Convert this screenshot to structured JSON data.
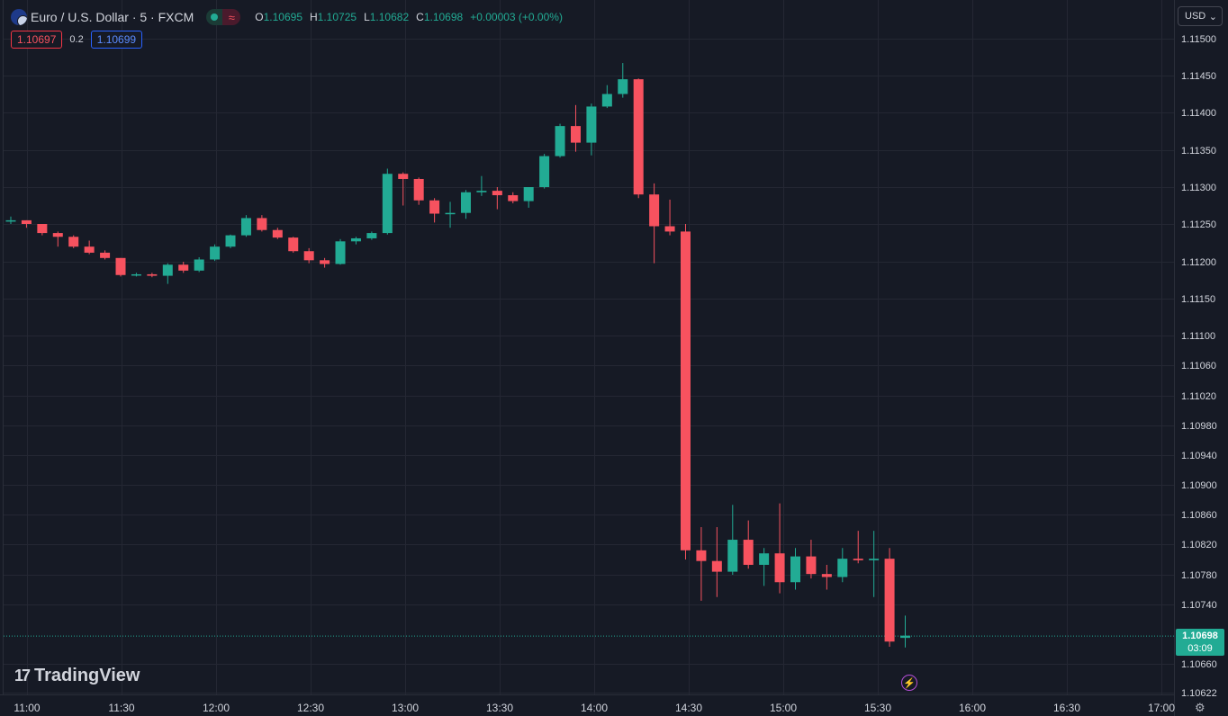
{
  "header": {
    "symbol": "Euro / U.S. Dollar · 5 · FXCM",
    "flag_icon": "eur-usd-flag-icon",
    "status_icon": "market-open-dot-icon",
    "wave_icon": "≈",
    "ohlc": {
      "open_label": "O",
      "open": "1.10695",
      "high_label": "H",
      "high": "1.10725",
      "low_label": "L",
      "low": "1.10682",
      "close_label": "C",
      "close": "1.10698",
      "change": "+0.00003 (+0.00%)"
    }
  },
  "bidask": {
    "bid": "1.10697",
    "spread": "0.2",
    "ask": "1.10699"
  },
  "currency_selector": {
    "value": "USD",
    "arrow": "⌄"
  },
  "brand": {
    "mark": "17",
    "name": "TradingView"
  },
  "last_price": {
    "price": "1.10698",
    "countdown": "03:09"
  },
  "bolt_icon": "⚡",
  "settings_icon": "⚙",
  "colors": {
    "up": "#22ab94",
    "down": "#f7525f",
    "background": "#161a25",
    "grid": "#242733",
    "axis_text": "#d1d4dc"
  },
  "chart_data": {
    "type": "candlestick",
    "title": "Euro / U.S. Dollar · 5 · FXCM",
    "interval": "5",
    "x_tick_labels": [
      "11:00",
      "11:30",
      "12:00",
      "12:30",
      "13:00",
      "13:30",
      "14:00",
      "14:30",
      "15:00",
      "15:30",
      "16:00",
      "16:30",
      "17:00"
    ],
    "y_tick_labels": [
      "1.11500",
      "1.11450",
      "1.11400",
      "1.11350",
      "1.11300",
      "1.11250",
      "1.11200",
      "1.11150",
      "1.11100",
      "1.11060",
      "1.11020",
      "1.10980",
      "1.10940",
      "1.10900",
      "1.10860",
      "1.10820",
      "1.10780",
      "1.10740",
      "1.10660",
      "1.10622"
    ],
    "y_scale": "non-linear (tick-interpolated)",
    "grid": true,
    "candles": [
      {
        "t": "10:55",
        "o": 1.11255,
        "h": 1.1126,
        "l": 1.1125,
        "c": 1.11255
      },
      {
        "t": "11:00",
        "o": 1.11255,
        "h": 1.11255,
        "l": 1.11245,
        "c": 1.1125
      },
      {
        "t": "11:05",
        "o": 1.1125,
        "h": 1.1125,
        "l": 1.11235,
        "c": 1.11238
      },
      {
        "t": "11:10",
        "o": 1.11238,
        "h": 1.1124,
        "l": 1.1122,
        "c": 1.11233
      },
      {
        "t": "11:15",
        "o": 1.11233,
        "h": 1.11235,
        "l": 1.11218,
        "c": 1.1122
      },
      {
        "t": "11:20",
        "o": 1.1122,
        "h": 1.11228,
        "l": 1.1121,
        "c": 1.11212
      },
      {
        "t": "11:25",
        "o": 1.11212,
        "h": 1.11215,
        "l": 1.11203,
        "c": 1.11205
      },
      {
        "t": "11:30",
        "o": 1.11205,
        "h": 1.11205,
        "l": 1.1118,
        "c": 1.11182
      },
      {
        "t": "11:35",
        "o": 1.11182,
        "h": 1.11185,
        "l": 1.1118,
        "c": 1.11183
      },
      {
        "t": "11:40",
        "o": 1.11183,
        "h": 1.11185,
        "l": 1.11179,
        "c": 1.11181
      },
      {
        "t": "11:45",
        "o": 1.11181,
        "h": 1.11198,
        "l": 1.1117,
        "c": 1.11196
      },
      {
        "t": "11:50",
        "o": 1.11196,
        "h": 1.112,
        "l": 1.11185,
        "c": 1.11188
      },
      {
        "t": "11:55",
        "o": 1.11188,
        "h": 1.11206,
        "l": 1.11186,
        "c": 1.11203
      },
      {
        "t": "12:00",
        "o": 1.11203,
        "h": 1.11223,
        "l": 1.11201,
        "c": 1.1122
      },
      {
        "t": "12:05",
        "o": 1.1122,
        "h": 1.11236,
        "l": 1.11218,
        "c": 1.11235
      },
      {
        "t": "12:10",
        "o": 1.11235,
        "h": 1.11262,
        "l": 1.11233,
        "c": 1.11258
      },
      {
        "t": "12:15",
        "o": 1.11258,
        "h": 1.11262,
        "l": 1.1124,
        "c": 1.11242
      },
      {
        "t": "12:20",
        "o": 1.11242,
        "h": 1.11245,
        "l": 1.1123,
        "c": 1.11232
      },
      {
        "t": "12:25",
        "o": 1.11232,
        "h": 1.11233,
        "l": 1.11212,
        "c": 1.11214
      },
      {
        "t": "12:30",
        "o": 1.11214,
        "h": 1.11218,
        "l": 1.11198,
        "c": 1.11202
      },
      {
        "t": "12:35",
        "o": 1.11202,
        "h": 1.11205,
        "l": 1.11192,
        "c": 1.11197
      },
      {
        "t": "12:40",
        "o": 1.11197,
        "h": 1.1123,
        "l": 1.11196,
        "c": 1.11227
      },
      {
        "t": "12:45",
        "o": 1.11227,
        "h": 1.11233,
        "l": 1.11223,
        "c": 1.11231
      },
      {
        "t": "12:50",
        "o": 1.11231,
        "h": 1.1124,
        "l": 1.11229,
        "c": 1.11238
      },
      {
        "t": "12:55",
        "o": 1.11238,
        "h": 1.11325,
        "l": 1.11236,
        "c": 1.11318
      },
      {
        "t": "13:00",
        "o": 1.11318,
        "h": 1.1132,
        "l": 1.11275,
        "c": 1.11311
      },
      {
        "t": "13:05",
        "o": 1.11311,
        "h": 1.11313,
        "l": 1.11276,
        "c": 1.11282
      },
      {
        "t": "13:10",
        "o": 1.11282,
        "h": 1.11285,
        "l": 1.11252,
        "c": 1.11264
      },
      {
        "t": "13:15",
        "o": 1.11264,
        "h": 1.1128,
        "l": 1.11245,
        "c": 1.11265
      },
      {
        "t": "13:20",
        "o": 1.11265,
        "h": 1.11296,
        "l": 1.11257,
        "c": 1.11293
      },
      {
        "t": "13:25",
        "o": 1.11293,
        "h": 1.11315,
        "l": 1.11288,
        "c": 1.11295
      },
      {
        "t": "13:30",
        "o": 1.11295,
        "h": 1.113,
        "l": 1.1127,
        "c": 1.11289
      },
      {
        "t": "13:35",
        "o": 1.11289,
        "h": 1.11293,
        "l": 1.11278,
        "c": 1.11281
      },
      {
        "t": "13:40",
        "o": 1.11281,
        "h": 1.11297,
        "l": 1.11272,
        "c": 1.113
      },
      {
        "t": "13:45",
        "o": 1.113,
        "h": 1.11345,
        "l": 1.11298,
        "c": 1.11342
      },
      {
        "t": "13:50",
        "o": 1.11342,
        "h": 1.11385,
        "l": 1.1134,
        "c": 1.11382
      },
      {
        "t": "13:55",
        "o": 1.11382,
        "h": 1.1141,
        "l": 1.11348,
        "c": 1.1136
      },
      {
        "t": "14:00",
        "o": 1.1136,
        "h": 1.11412,
        "l": 1.11343,
        "c": 1.11408
      },
      {
        "t": "14:05",
        "o": 1.11408,
        "h": 1.11437,
        "l": 1.11406,
        "c": 1.11425
      },
      {
        "t": "14:10",
        "o": 1.11425,
        "h": 1.11467,
        "l": 1.1142,
        "c": 1.11445
      },
      {
        "t": "14:15",
        "o": 1.11445,
        "h": 1.11446,
        "l": 1.11285,
        "c": 1.1129
      },
      {
        "t": "14:20",
        "o": 1.1129,
        "h": 1.11305,
        "l": 1.11198,
        "c": 1.11247
      },
      {
        "t": "14:25",
        "o": 1.11247,
        "h": 1.11283,
        "l": 1.11235,
        "c": 1.1124
      },
      {
        "t": "14:30",
        "o": 1.1124,
        "h": 1.1125,
        "l": 1.108,
        "c": 1.10812
      },
      {
        "t": "14:35",
        "o": 1.10812,
        "h": 1.10843,
        "l": 1.10745,
        "c": 1.10798
      },
      {
        "t": "14:40",
        "o": 1.10798,
        "h": 1.10843,
        "l": 1.1075,
        "c": 1.10784
      },
      {
        "t": "14:45",
        "o": 1.10784,
        "h": 1.10873,
        "l": 1.1078,
        "c": 1.10826
      },
      {
        "t": "14:50",
        "o": 1.10826,
        "h": 1.10852,
        "l": 1.10788,
        "c": 1.10793
      },
      {
        "t": "14:55",
        "o": 1.10793,
        "h": 1.10815,
        "l": 1.10765,
        "c": 1.10808
      },
      {
        "t": "15:00",
        "o": 1.10808,
        "h": 1.10875,
        "l": 1.10755,
        "c": 1.1077
      },
      {
        "t": "15:05",
        "o": 1.1077,
        "h": 1.10815,
        "l": 1.1076,
        "c": 1.10804
      },
      {
        "t": "15:10",
        "o": 1.10804,
        "h": 1.10826,
        "l": 1.10775,
        "c": 1.10781
      },
      {
        "t": "15:15",
        "o": 1.10781,
        "h": 1.10793,
        "l": 1.1076,
        "c": 1.10777
      },
      {
        "t": "15:20",
        "o": 1.10777,
        "h": 1.10815,
        "l": 1.1077,
        "c": 1.10801
      },
      {
        "t": "15:25",
        "o": 1.10801,
        "h": 1.10838,
        "l": 1.10795,
        "c": 1.10799
      },
      {
        "t": "15:30",
        "o": 1.10799,
        "h": 1.10838,
        "l": 1.1075,
        "c": 1.10801
      },
      {
        "t": "15:35",
        "o": 1.10801,
        "h": 1.10815,
        "l": 1.10683,
        "c": 1.1069
      },
      {
        "t": "15:40",
        "o": 1.10695,
        "h": 1.10725,
        "l": 1.10682,
        "c": 1.10698
      }
    ]
  }
}
